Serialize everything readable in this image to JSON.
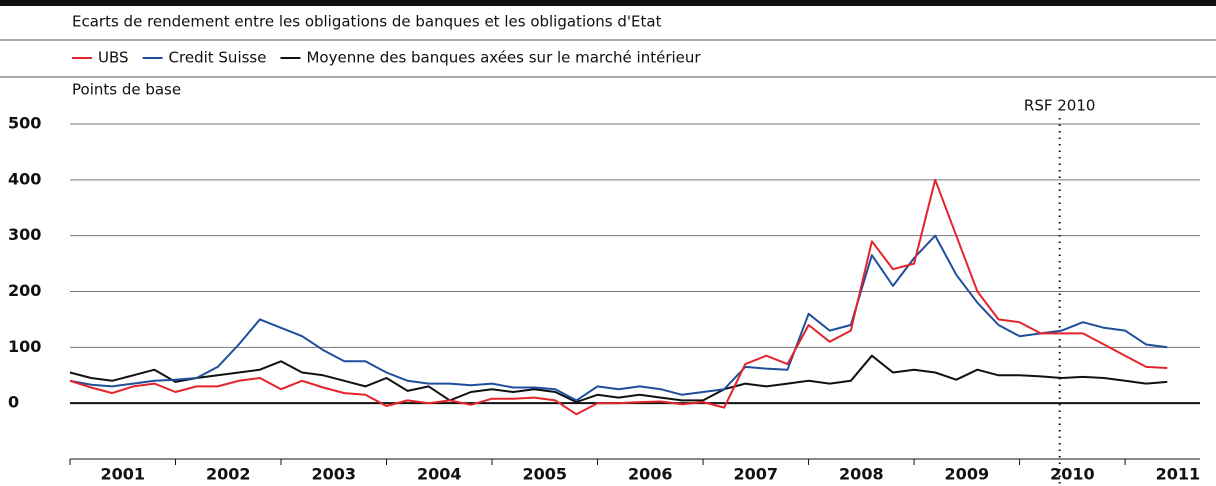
{
  "chart_data": {
    "type": "line",
    "title": "Ecarts de rendement entre les obligations de banques et les obligations d'Etat",
    "y_label": "Points de base",
    "x": [
      2001,
      2001.2,
      2001.4,
      2001.6,
      2001.8,
      2002,
      2002.2,
      2002.4,
      2002.6,
      2002.8,
      2003,
      2003.2,
      2003.4,
      2003.6,
      2003.8,
      2004,
      2004.2,
      2004.4,
      2004.6,
      2004.8,
      2005,
      2005.2,
      2005.4,
      2005.6,
      2005.8,
      2006,
      2006.2,
      2006.4,
      2006.6,
      2006.8,
      2007,
      2007.2,
      2007.4,
      2007.6,
      2007.8,
      2008,
      2008.2,
      2008.4,
      2008.6,
      2008.8,
      2009,
      2009.2,
      2009.4,
      2009.6,
      2009.8,
      2010,
      2010.2,
      2010.4,
      2010.6,
      2010.8,
      2011,
      2011.2,
      2011.4
    ],
    "series": [
      {
        "name": "UBS",
        "color": "#e3242b",
        "values": [
          40,
          28,
          18,
          30,
          35,
          20,
          30,
          30,
          40,
          45,
          25,
          40,
          28,
          18,
          15,
          -5,
          5,
          0,
          5,
          -3,
          8,
          8,
          10,
          5,
          -20,
          0,
          0,
          2,
          3,
          -2,
          2,
          -8,
          70,
          85,
          70,
          140,
          110,
          130,
          290,
          240,
          250,
          400,
          300,
          200,
          150,
          145,
          125,
          125,
          125,
          105,
          85,
          65,
          63
        ]
      },
      {
        "name": "Credit Suisse",
        "color": "#1f4e9c",
        "values": [
          40,
          33,
          30,
          35,
          40,
          42,
          45,
          65,
          105,
          150,
          135,
          120,
          95,
          75,
          75,
          55,
          40,
          35,
          35,
          32,
          35,
          28,
          28,
          25,
          5,
          30,
          25,
          30,
          25,
          15,
          20,
          25,
          65,
          62,
          60,
          160,
          130,
          140,
          265,
          210,
          260,
          300,
          230,
          180,
          140,
          120,
          125,
          130,
          145,
          135,
          130,
          105,
          100
        ]
      },
      {
        "name": "Moyenne des banques axées sur le marché intérieur",
        "color": "#111111",
        "values": [
          55,
          45,
          40,
          50,
          60,
          38,
          45,
          50,
          55,
          60,
          75,
          55,
          50,
          40,
          30,
          45,
          22,
          30,
          5,
          20,
          25,
          20,
          25,
          20,
          2,
          15,
          10,
          15,
          10,
          5,
          5,
          25,
          35,
          30,
          35,
          40,
          35,
          40,
          85,
          55,
          60,
          55,
          42,
          60,
          50,
          50,
          48,
          45,
          47,
          45,
          40,
          35,
          38
        ]
      }
    ],
    "xlim": [
      2001,
      2011.71
    ],
    "xticks": [
      2001,
      2002,
      2003,
      2004,
      2005,
      2006,
      2007,
      2008,
      2009,
      2010,
      2011
    ],
    "ylim": [
      -100,
      500
    ],
    "yticks": [
      0,
      100,
      200,
      300,
      400,
      500
    ],
    "grid": true,
    "annotations": [
      {
        "text": "RSF 2010",
        "x": 2010.38
      }
    ]
  }
}
